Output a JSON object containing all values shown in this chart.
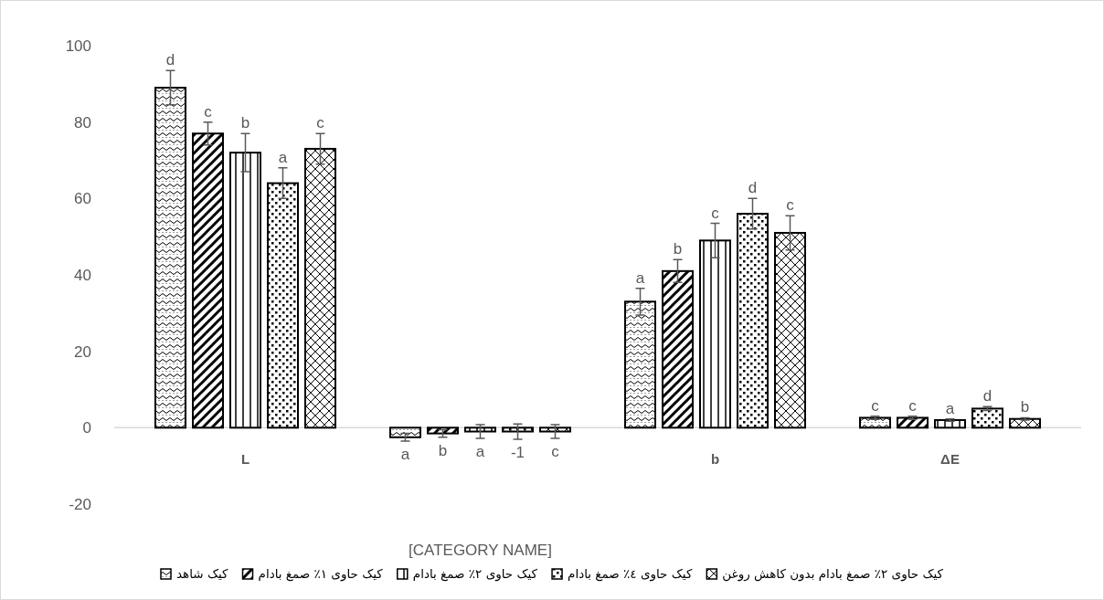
{
  "chart_data": {
    "type": "bar",
    "xlabel": null,
    "categories": [
      "L",
      "[CATEGORY NAME]",
      "b",
      "ΔE"
    ],
    "ylim": [
      -20,
      100
    ],
    "yticks": [
      -20,
      0,
      20,
      40,
      60,
      80,
      100
    ],
    "grid": false,
    "legend": "bottom",
    "series": [
      {
        "name": "کیک شاهد",
        "color": "#000000",
        "values": [
          89,
          -2.5,
          33,
          2.6
        ],
        "errors": [
          4.5,
          1,
          3.5,
          0.4
        ],
        "value_labels": [
          "d",
          "a",
          "a",
          "c"
        ]
      },
      {
        "name": "کیک حاوی ۱٪ صمغ بادام",
        "color": "#000000",
        "values": [
          77,
          -1.5,
          41,
          2.6
        ],
        "errors": [
          3,
          1,
          3,
          0.4
        ],
        "value_labels": [
          "c",
          "b",
          "b",
          "c"
        ]
      },
      {
        "name": "کیک حاوی ۲٪ صمغ  بادام",
        "color": "#000000",
        "values": [
          72,
          -1,
          49,
          2
        ],
        "errors": [
          5,
          1.8,
          4.5,
          0.3
        ],
        "value_labels": [
          "b",
          "a",
          "c",
          "a"
        ]
      },
      {
        "name": "کیک حاوی ٤٪ صمغ بادام",
        "color": "#000000",
        "values": [
          64,
          -1,
          56,
          5
        ],
        "errors": [
          4,
          2,
          4,
          0.5
        ],
        "value_labels": [
          "a",
          "-1",
          "d",
          "d"
        ]
      },
      {
        "name": "کیک حاوی ۲٪ صمغ  بادام بدون کاهش روغن",
        "color": "#000000",
        "values": [
          73,
          -1,
          51,
          2.3
        ],
        "errors": [
          4,
          1.8,
          4.5,
          0.3
        ],
        "value_labels": [
          "c",
          "c",
          "c",
          "b"
        ]
      }
    ]
  }
}
